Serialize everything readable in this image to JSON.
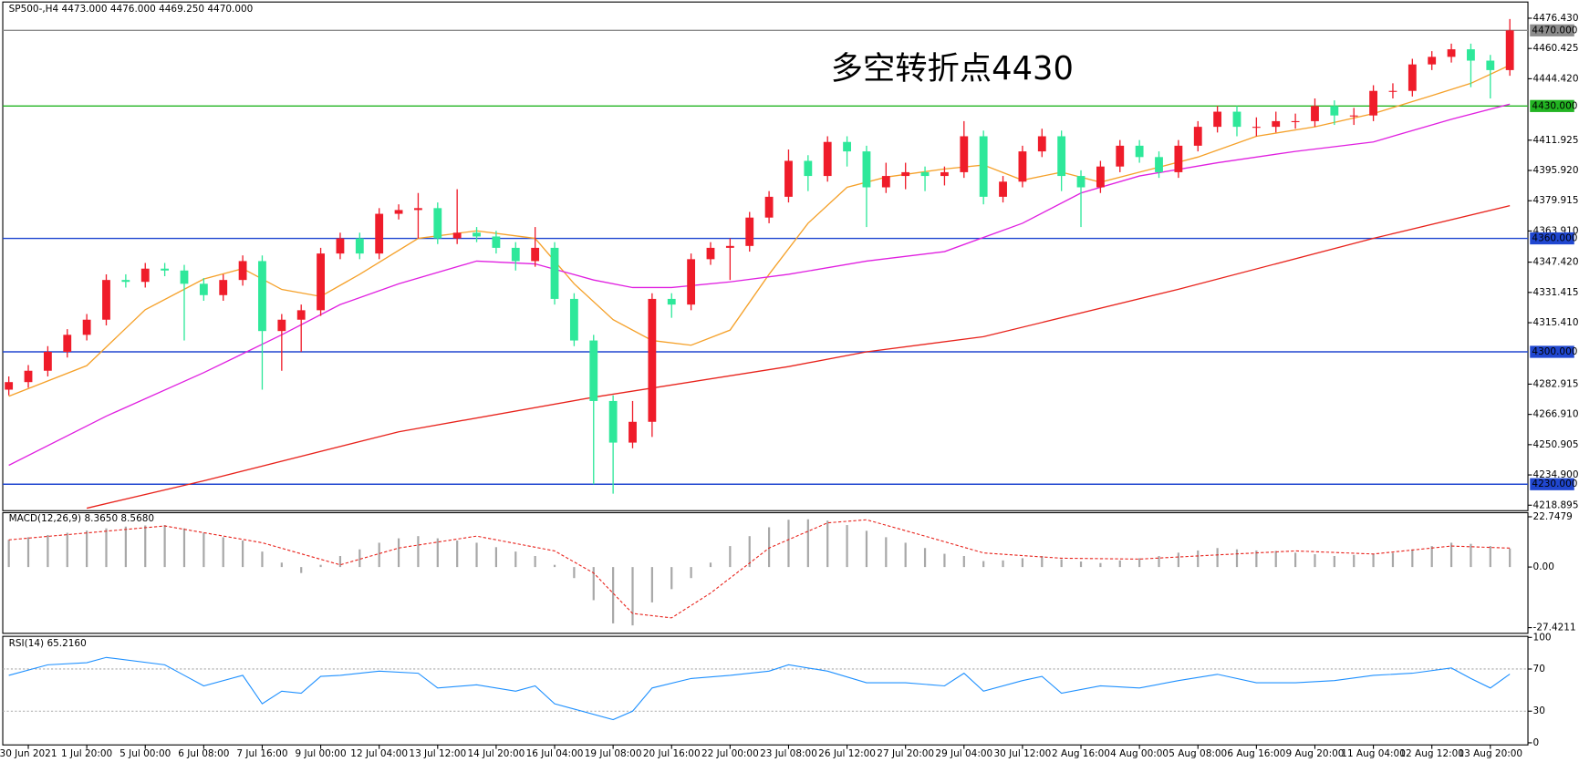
{
  "chart_data": {
    "type": "candlestick",
    "title": "SP500-,H4  4473.000 4476.000 4469.250 4470.000",
    "up_color": "#ef1c2a",
    "down_color": "#2ee89a",
    "open": [
      4280,
      4284,
      4290,
      4300,
      4309,
      4317,
      4338,
      4337,
      4344,
      4343,
      4336,
      4330,
      4338,
      4348,
      4311,
      4317,
      4322,
      4352,
      4360,
      4352,
      4373,
      4375,
      4376,
      4360,
      4363,
      4361,
      4355,
      4348,
      4355,
      4328,
      4306,
      4274,
      4252,
      4263,
      4328,
      4325,
      4349,
      4355,
      4356,
      4371,
      4382,
      4401,
      4393,
      4411,
      4406,
      4387,
      4393,
      4395,
      4393,
      4395,
      4414,
      4382,
      4390,
      4406,
      4414,
      4393,
      4387,
      4398,
      4409,
      4403,
      4395,
      4409,
      4419,
      4427,
      4419,
      4419,
      4422,
      4422,
      4430,
      4425,
      4425,
      4438,
      4438,
      4452,
      4456,
      4460,
      4454,
      4449
    ],
    "high": [
      4287,
      4293,
      4303,
      4312,
      4320,
      4341,
      4341,
      4347,
      4347,
      4346,
      4339,
      4341,
      4351,
      4351,
      4320,
      4325,
      4355,
      4363,
      4363,
      4376,
      4378,
      4384,
      4379,
      4386,
      4366,
      4364,
      4358,
      4366,
      4358,
      4331,
      4309,
      4277,
      4274,
      4331,
      4331,
      4352,
      4358,
      4360,
      4374,
      4385,
      4407,
      4404,
      4414,
      4414,
      4409,
      4400,
      4400,
      4398,
      4398,
      4422,
      4417,
      4393,
      4409,
      4418,
      4417,
      4396,
      4401,
      4412,
      4412,
      4406,
      4412,
      4422,
      4430,
      4430,
      4424,
      4427,
      4426,
      4434,
      4433,
      4429,
      4441,
      4442,
      4455,
      4459,
      4463,
      4463,
      4457,
      4476
    ],
    "low": [
      4277,
      4281,
      4287,
      4297,
      4306,
      4314,
      4334,
      4334,
      4340,
      4306,
      4327,
      4327,
      4335,
      4280,
      4290,
      4300,
      4319,
      4349,
      4349,
      4349,
      4370,
      4360,
      4357,
      4357,
      4358,
      4352,
      4343,
      4345,
      4325,
      4303,
      4230,
      4225,
      4249,
      4255,
      4318,
      4322,
      4346,
      4338,
      4353,
      4368,
      4379,
      4385,
      4390,
      4398,
      4366,
      4384,
      4386,
      4385,
      4388,
      4392,
      4378,
      4379,
      4387,
      4403,
      4385,
      4366,
      4384,
      4395,
      4400,
      4392,
      4392,
      4406,
      4416,
      4414,
      4414,
      4416,
      4418,
      4419,
      4420,
      4420,
      4422,
      4434,
      4435,
      4449,
      4453,
      4440,
      4434,
      4446
    ],
    "close": [
      4284,
      4290,
      4300,
      4309,
      4317,
      4338,
      4337,
      4344,
      4343,
      4336,
      4330,
      4338,
      4348,
      4311,
      4317,
      4322,
      4352,
      4360,
      4352,
      4373,
      4375,
      4376,
      4360,
      4363,
      4361,
      4355,
      4348,
      4355,
      4328,
      4306,
      4274,
      4252,
      4263,
      4328,
      4325,
      4349,
      4355,
      4356,
      4371,
      4382,
      4401,
      4393,
      4411,
      4406,
      4387,
      4393,
      4395,
      4393,
      4395,
      4414,
      4382,
      4390,
      4406,
      4414,
      4393,
      4387,
      4398,
      4409,
      4403,
      4395,
      4409,
      4419,
      4427,
      4419,
      4419,
      4422,
      4422,
      4430,
      4425,
      4425,
      4438,
      4438,
      4452,
      4456,
      4460,
      4454,
      4449,
      4470
    ],
    "ylim": [
      4216,
      4485
    ],
    "yticks": [
      {
        "value": 4476.43,
        "label": "4476.430"
      },
      4460.425,
      {
        "value": 4444.42,
        "label": "4444.420"
      },
      4411.925,
      {
        "value": 4395.92,
        "label": "4395.920"
      },
      4379.915,
      {
        "value": 4363.91,
        "label": "4363.910"
      },
      {
        "value": 4347.42,
        "label": "4347.420"
      },
      4331.415,
      {
        "value": 4315.41,
        "label": "4315.410"
      },
      4282.915,
      {
        "value": 4266.91,
        "label": "4266.910"
      },
      4250.905,
      {
        "value": 4234.9,
        "label": "4234.900"
      },
      4218.895
    ],
    "xticks": [
      {
        "value": 1,
        "label": "30 Jun 2021"
      },
      {
        "value": 4,
        "label": "1 Jul 20:00"
      },
      {
        "value": 7,
        "label": "5 Jul 00:00"
      },
      {
        "value": 10,
        "label": "6 Jul 08:00"
      },
      {
        "value": 13,
        "label": "7 Jul 16:00"
      },
      {
        "value": 16,
        "label": "9 Jul 00:00"
      },
      {
        "value": 19,
        "label": "12 Jul 04:00"
      },
      {
        "value": 22,
        "label": "13 Jul 12:00"
      },
      {
        "value": 25,
        "label": "14 Jul 20:00"
      },
      {
        "value": 28,
        "label": "16 Jul 04:00"
      },
      {
        "value": 31,
        "label": "19 Jul 08:00"
      },
      {
        "value": 34,
        "label": "20 Jul 16:00"
      },
      {
        "value": 37,
        "label": "22 Jul 00:00"
      },
      {
        "value": 40,
        "label": "23 Jul 08:00"
      },
      {
        "value": 43,
        "label": "26 Jul 12:00"
      },
      {
        "value": 46,
        "label": "27 Jul 20:00"
      },
      {
        "value": 49,
        "label": "29 Jul 04:00"
      },
      {
        "value": 52,
        "label": "30 Jul 12:00"
      },
      {
        "value": 55,
        "label": "2 Aug 16:00"
      },
      {
        "value": 58,
        "label": "4 Aug 00:00"
      },
      {
        "value": 61,
        "label": "5 Aug 08:00"
      },
      {
        "value": 64,
        "label": "6 Aug 16:00"
      },
      {
        "value": 67,
        "label": "9 Aug 20:00"
      },
      {
        "value": 70,
        "label": "11 Aug 04:00"
      },
      {
        "value": 73,
        "label": "12 Aug 12:00"
      },
      {
        "value": 76,
        "label": "13 Aug 20:00"
      }
    ],
    "levels": [
      {
        "value": 4470,
        "label": "4470.000",
        "color": "#8c8c8c"
      },
      {
        "value": 4430,
        "label": "4430.000",
        "color": "#22b422"
      },
      {
        "value": 4360,
        "label": "4360.000",
        "color": "#2047d0"
      },
      {
        "value": 4300,
        "label": "4300.000",
        "color": "#2047d0"
      },
      {
        "value": 4230,
        "label": "4230.000",
        "color": "#2047d0"
      }
    ],
    "moving_averages": [
      {
        "color": "#f5a12a",
        "x": [
          0,
          4,
          7,
          10,
          12,
          14,
          16,
          18,
          21,
          24,
          27,
          29,
          31,
          33,
          35,
          37,
          39,
          41,
          43,
          45,
          48,
          50,
          52,
          54,
          56,
          58,
          61,
          64,
          67,
          70,
          73,
          75,
          77
        ],
        "values": [
          4276.5,
          4292.7,
          4322.3,
          4338.5,
          4344,
          4333,
          4329.3,
          4341,
          4360,
          4364,
          4360,
          4336,
          4317,
          4306,
          4303.5,
          4311.5,
          4341,
          4368,
          4387,
          4392.4,
          4396.7,
          4398.8,
          4390.8,
          4395,
          4389.7,
          4395,
          4403,
          4414,
          4419,
          4426,
          4435.5,
          4442,
          4451.6
        ]
      },
      {
        "color": "#e020e0",
        "x": [
          0,
          5,
          10,
          14,
          17,
          20,
          24,
          27,
          30,
          32,
          34,
          37,
          40,
          44,
          48,
          52,
          55,
          58,
          62,
          66,
          70,
          74,
          77
        ],
        "values": [
          4240,
          4266,
          4289,
          4309,
          4325,
          4336,
          4348,
          4346.5,
          4338,
          4334,
          4334,
          4337,
          4341,
          4348,
          4353,
          4368,
          4384,
          4393,
          4400,
          4406,
          4411,
          4423,
          4431
        ]
      },
      {
        "color": "#e8231c",
        "x": [
          4,
          10,
          20,
          30,
          40,
          44,
          50,
          60,
          70,
          77
        ],
        "values": [
          4217.3,
          4231.8,
          4257.7,
          4276,
          4292.2,
          4300,
          4308,
          4333.1,
          4360,
          4377.3
        ]
      }
    ],
    "annotation": {
      "text": "多空转折点4430",
      "color": "#e8231c"
    },
    "macd": {
      "title": "MACD(12,26,9) 8.3650 8.5680",
      "ylim": [
        -30,
        24.6
      ],
      "yticks": [
        22.7479,
        {
          "value": 0,
          "label": "0.00"
        },
        -27.4211
      ],
      "color": "#a8a8a8",
      "histogram": [
        12.3,
        13.5,
        14.5,
        15.5,
        16.5,
        17.5,
        18.3,
        18.8,
        19,
        17.5,
        15.5,
        13.5,
        12,
        7,
        2,
        -2.7,
        1,
        5,
        8,
        11,
        13,
        14,
        13,
        12,
        11,
        9,
        7,
        5,
        1,
        -5,
        -15,
        -25.5,
        -26.4,
        -16,
        -10,
        -5,
        2,
        9.5,
        14,
        18,
        21.4,
        21.6,
        21,
        19,
        16.4,
        13.5,
        11,
        8.6,
        6,
        5,
        2.7,
        3,
        4,
        5,
        3.5,
        2.5,
        1.8,
        3,
        4,
        5,
        6.5,
        7.5,
        8.6,
        8,
        7.5,
        7.3,
        6.5,
        5.8,
        5,
        5.5,
        6,
        6.4,
        8,
        9.5,
        11,
        10.5,
        9.5,
        8.365
      ],
      "signal": {
        "color": "#e8231c",
        "x": [
          0,
          8,
          13,
          17,
          20,
          24,
          28,
          30,
          32,
          34,
          36,
          39,
          42,
          44,
          47,
          50,
          54,
          58,
          62,
          66,
          70,
          74,
          77
        ],
        "values": [
          12.3,
          18.6,
          11,
          1,
          8.6,
          14,
          7.3,
          -2.7,
          -21,
          -23,
          -11.8,
          8.6,
          20,
          21.4,
          14,
          6.4,
          4,
          3.6,
          5.5,
          7.3,
          5.9,
          9.5,
          8.568
        ]
      }
    },
    "rsi": {
      "title": "RSI(14) 65.2160",
      "ylim": [
        -2,
        101
      ],
      "yticks": [
        100,
        70,
        30,
        0
      ],
      "levels": [
        70,
        30
      ],
      "color": "#1e90ff",
      "x": [
        0,
        2,
        4,
        5,
        8,
        9,
        10,
        12,
        13,
        14,
        15,
        16,
        17,
        19,
        21,
        22,
        24,
        26,
        27,
        28,
        29,
        31,
        32,
        33,
        35,
        37,
        39,
        40,
        42,
        44,
        46,
        48,
        49,
        50,
        52,
        53,
        54,
        56,
        58,
        60,
        62,
        64,
        66,
        68,
        70,
        72,
        74,
        75,
        76,
        77
      ],
      "values": [
        64,
        74,
        76,
        81,
        74,
        64,
        54,
        64,
        37,
        49,
        47,
        63,
        64,
        68,
        66,
        52,
        55,
        49,
        54,
        37,
        32,
        22,
        30,
        52,
        61,
        64,
        68,
        74,
        68,
        57,
        57,
        54,
        66,
        49,
        59,
        63,
        47,
        54,
        52,
        59,
        65,
        57,
        57,
        59,
        64,
        66,
        71,
        61,
        52,
        65.216
      ]
    }
  }
}
